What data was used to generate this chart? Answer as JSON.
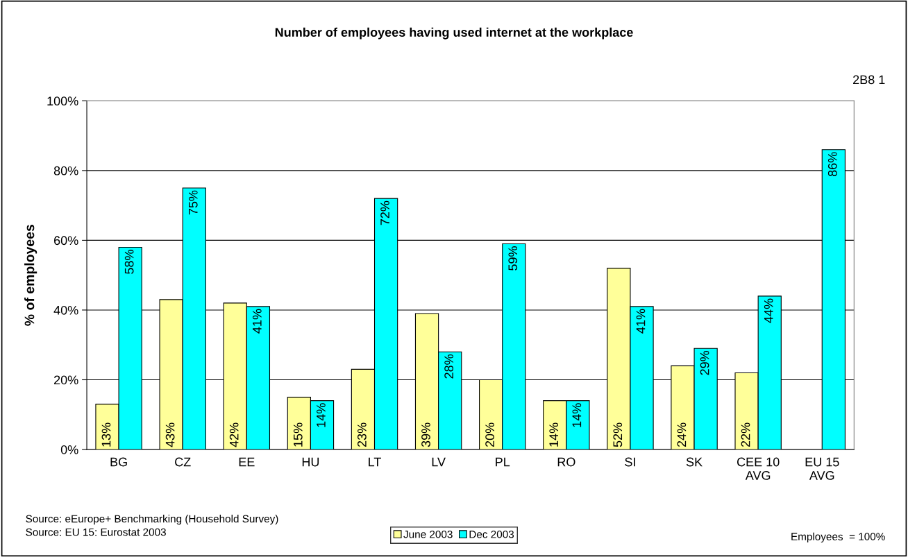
{
  "chart_data": {
    "type": "bar",
    "title": "Number of employees having used internet at the workplace",
    "ylabel": "% of employees",
    "categories": [
      "BG",
      "CZ",
      "EE",
      "HU",
      "LT",
      "LV",
      "PL",
      "RO",
      "SI",
      "SK",
      "CEE 10\nAVG",
      "EU 15\nAVG"
    ],
    "series": [
      {
        "name": "June 2003",
        "color": "#ffff99",
        "values": [
          13,
          43,
          42,
          15,
          23,
          39,
          20,
          14,
          52,
          24,
          22,
          null
        ],
        "value_labels": [
          "13%",
          "43%",
          "42%",
          "15%",
          "23%",
          "39%",
          "20%",
          "14%",
          "52%",
          "24%",
          "22%",
          null
        ]
      },
      {
        "name": "Dec 2003",
        "color": "#00ffff",
        "values": [
          58,
          75,
          41,
          14,
          72,
          28,
          59,
          14,
          41,
          29,
          44,
          86
        ],
        "value_labels": [
          "58%",
          "75%",
          "41%",
          "14%",
          "72%",
          "28%",
          "59%",
          "14%",
          "41%",
          "29%",
          "44%",
          "86%"
        ]
      }
    ],
    "ylim": [
      0,
      100
    ],
    "yticks": [
      {
        "value": 0,
        "label": "0%"
      },
      {
        "value": 20,
        "label": "20%"
      },
      {
        "value": 40,
        "label": "40%"
      },
      {
        "value": 60,
        "label": "60%"
      },
      {
        "value": 80,
        "label": "80%"
      },
      {
        "value": 100,
        "label": "100%"
      }
    ],
    "grid": "y",
    "legend": "bottom",
    "annotations": [
      "2B8 1",
      "Source: eEurope+ Benchmarking (Household Survey)",
      "Source: EU 15: Eurostat 2003",
      "Employees  = 100%"
    ]
  }
}
